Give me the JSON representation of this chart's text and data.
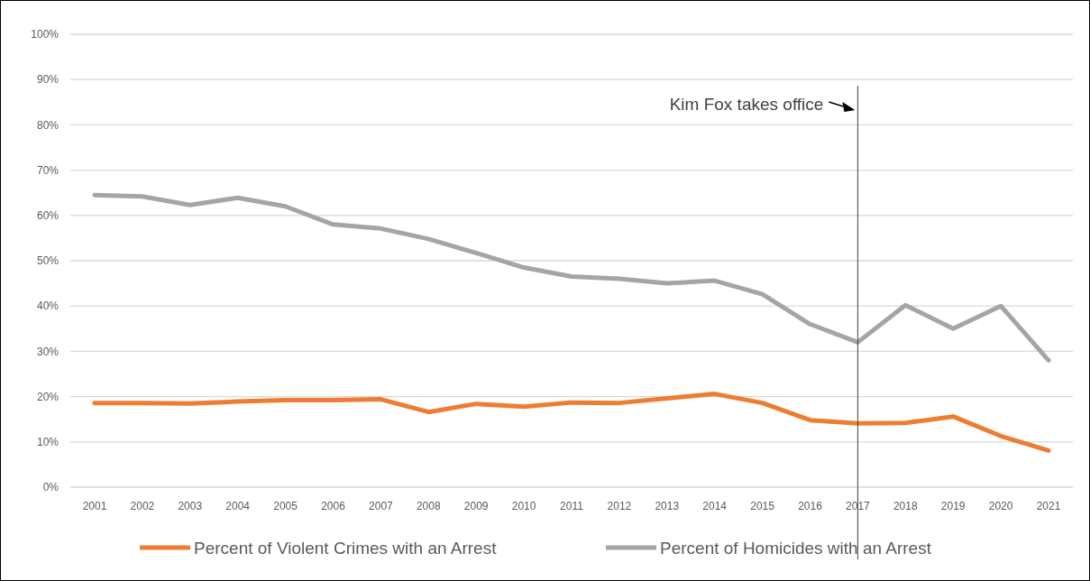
{
  "chart_data": {
    "type": "line",
    "categories": [
      "2001",
      "2002",
      "2003",
      "2004",
      "2005",
      "2006",
      "2007",
      "2008",
      "2009",
      "2010",
      "2011",
      "2012",
      "2013",
      "2014",
      "2015",
      "2016",
      "2017",
      "2018",
      "2019",
      "2020",
      "2021"
    ],
    "series": [
      {
        "name": "Percent of Violent Crimes with an Arrest",
        "color": "#ed7d31",
        "values": [
          18.6,
          18.6,
          18.5,
          18.9,
          19.2,
          19.2,
          19.4,
          16.6,
          18.4,
          17.8,
          18.7,
          18.6,
          19.6,
          20.6,
          18.6,
          14.8,
          14.1,
          14.2,
          15.6,
          11.3,
          8.1
        ]
      },
      {
        "name": "Percent of Homicides with an Arrest",
        "color": "#a5a5a5",
        "values": [
          64.5,
          64.2,
          62.3,
          63.9,
          62,
          58,
          57.1,
          54.8,
          51.7,
          48.5,
          46.5,
          46,
          45,
          45.6,
          42.6,
          36,
          32,
          40.2,
          35,
          40,
          28
        ]
      }
    ],
    "ylim": [
      0,
      100
    ],
    "yticks": [
      {
        "value": 0,
        "label": "0%"
      },
      {
        "value": 10,
        "label": "10%"
      },
      {
        "value": 20,
        "label": "20%"
      },
      {
        "value": 30,
        "label": "30%"
      },
      {
        "value": 40,
        "label": "40%"
      },
      {
        "value": 50,
        "label": "50%"
      },
      {
        "value": 60,
        "label": "60%"
      },
      {
        "value": 70,
        "label": "70%"
      },
      {
        "value": 80,
        "label": "80%"
      },
      {
        "value": 90,
        "label": "90%"
      },
      {
        "value": 100,
        "label": "100%"
      }
    ],
    "grid": "y",
    "legend": "bottom",
    "marker": "none",
    "line_style": "solid",
    "ref_lines": [
      {
        "axis": "x",
        "value": "2017",
        "label": "Kim Fox takes office",
        "color": "#404040"
      }
    ]
  }
}
